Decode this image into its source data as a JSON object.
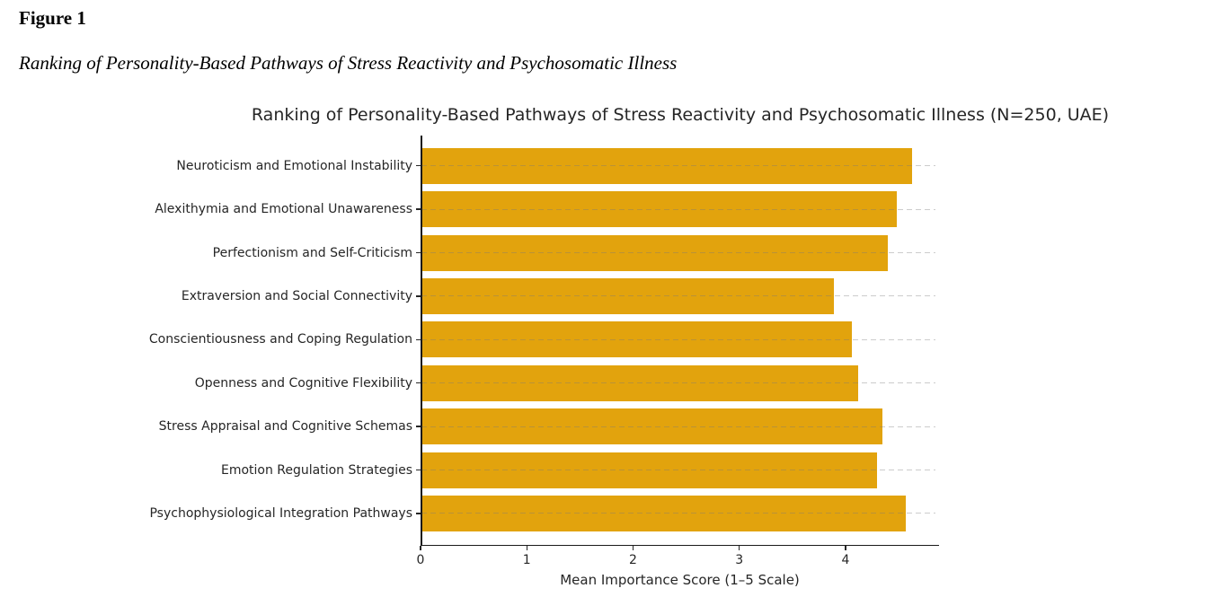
{
  "document": {
    "figure_label": "Figure 1",
    "figure_caption": "Ranking of Personality-Based Pathways of Stress Reactivity and Psychosomatic Illness"
  },
  "chart_data": {
    "type": "bar",
    "orientation": "horizontal",
    "title": "Ranking of Personality-Based Pathways of Stress Reactivity and Psychosomatic Illness (N=250, UAE)",
    "xlabel": "Mean Importance Score (1–5 Scale)",
    "ylabel": "",
    "categories": [
      "Neuroticism and Emotional Instability",
      "Alexithymia and Emotional Unawareness",
      "Perfectionism and Self-Criticism",
      "Extraversion and Social Connectivity",
      "Conscientiousness and Coping Regulation",
      "Openness and Cognitive Flexibility",
      "Stress Appraisal and Cognitive Schemas",
      "Emotion Regulation Strategies",
      "Psychophysiological Integration Pathways"
    ],
    "values": [
      4.62,
      4.47,
      4.39,
      3.88,
      4.05,
      4.11,
      4.34,
      4.29,
      4.56
    ],
    "xlim": [
      0,
      4.88
    ],
    "xticks": [
      "0",
      "1",
      "2",
      "3",
      "4"
    ],
    "grid": "horizontal-dashed",
    "legend": "none",
    "colors": {
      "bar": "#E2A30D",
      "grid_on_white": "#c9c9c9",
      "grid_rgba": "120,120,120,0.38",
      "text": "#262626",
      "spine": "#1a1a1a"
    }
  }
}
